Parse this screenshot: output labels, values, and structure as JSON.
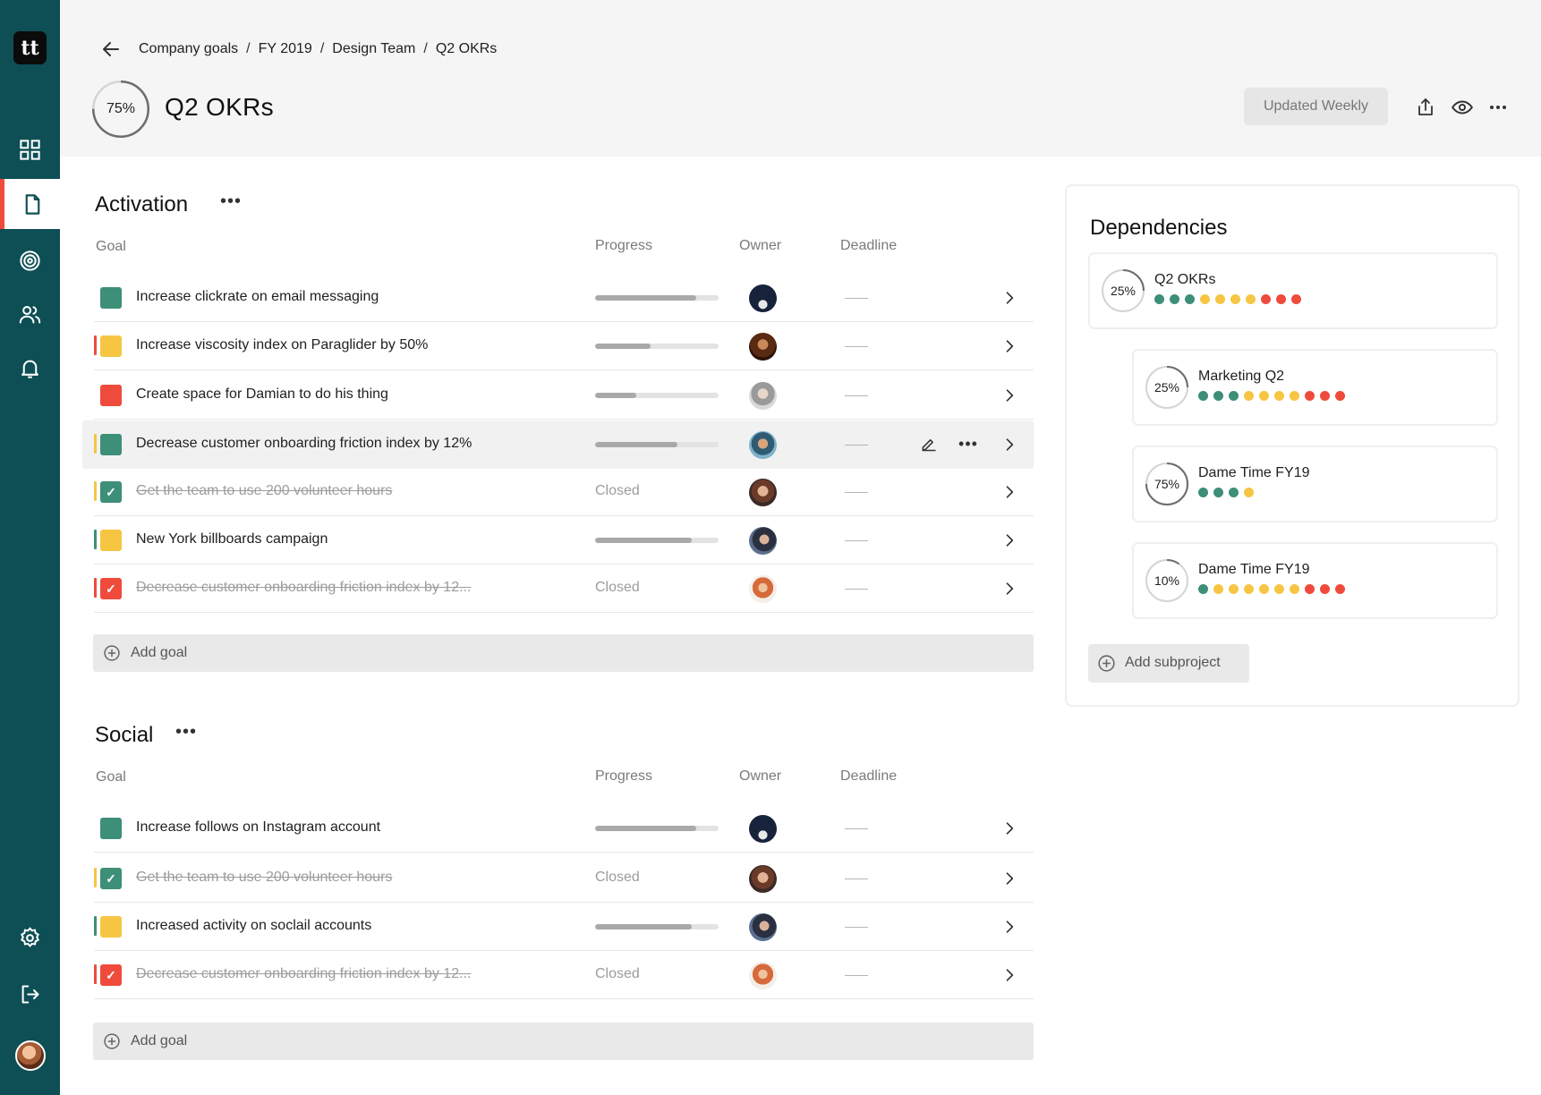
{
  "app": {
    "logo_text": "tt",
    "nav": [
      "dashboard-icon",
      "document-icon",
      "target-icon",
      "users-icon",
      "bell-icon"
    ],
    "bottom_nav": [
      "settings-icon",
      "logout-icon"
    ]
  },
  "header": {
    "breadcrumb": [
      "Company goals",
      "FY 2019",
      "Design Team",
      "Q2 OKRs"
    ],
    "progress": 0.75,
    "progress_label": "75%",
    "title": "Q2 OKRs",
    "updated_label": "Updated Weekly",
    "icons": [
      "share-icon",
      "eye-icon",
      "more-icon"
    ]
  },
  "columns": {
    "goal": "Goal",
    "progress": "Progress",
    "owner": "Owner",
    "deadline": "Deadline"
  },
  "sections": [
    {
      "title": "Activation",
      "add_label": "Add goal",
      "goals": [
        {
          "text": "Increase clickrate on email messaging",
          "status_color": "#3d8f77",
          "flag_color": "",
          "progress": 0.82,
          "closed": false
        },
        {
          "text": "Increase viscosity index on Paraglider by 50%",
          "status_color": "#f6c643",
          "flag_color": "#ef4b3c",
          "progress": 0.45,
          "closed": false
        },
        {
          "text": "Create space for Damian to do his thing",
          "status_color": "#ef4b3c",
          "flag_color": "",
          "progress": 0.33,
          "closed": false
        },
        {
          "text": "Decrease customer onboarding friction index by 12%",
          "status_color": "#3d8f77",
          "flag_color": "#f6c643",
          "progress": 0.67,
          "closed": false
        },
        {
          "text": "Get the team to use 200 volunteer hours",
          "status_color": "#3d8f77",
          "flag_color": "#f6c643",
          "closed": true,
          "closed_label": "Closed"
        },
        {
          "text": "New York billboards campaign",
          "status_color": "#f6c643",
          "flag_color": "#3d8f77",
          "progress": 0.78,
          "closed": false
        },
        {
          "text": "Decrease customer onboarding friction index by 12...",
          "status_color": "#ef4b3c",
          "flag_color": "#ef4b3c",
          "closed": true,
          "closed_label": "Closed"
        }
      ]
    },
    {
      "title": "Social",
      "add_label": "Add goal",
      "goals": [
        {
          "text": "Increase follows on Instagram account",
          "status_color": "#3d8f77",
          "flag_color": "",
          "progress": 0.82,
          "closed": false
        },
        {
          "text": "Get the team to use 200 volunteer hours",
          "status_color": "#3d8f77",
          "flag_color": "#f6c643",
          "closed": true,
          "closed_label": "Closed"
        },
        {
          "text": "Increased activity on soclail accounts",
          "status_color": "#f6c643",
          "flag_color": "#3d8f77",
          "progress": 0.78,
          "closed": false
        },
        {
          "text": "Decrease customer onboarding friction index by 12...",
          "status_color": "#ef4b3c",
          "flag_color": "#ef4b3c",
          "closed": true,
          "closed_label": "Closed"
        }
      ]
    }
  ],
  "dependencies": {
    "title": "Dependencies",
    "items": [
      {
        "name": "Q2 OKRs",
        "progress": 0.25,
        "label": "25%",
        "dots": [
          "g",
          "g",
          "g",
          "y",
          "y",
          "y",
          "y",
          "r",
          "r",
          "r"
        ]
      },
      {
        "name": "Marketing Q2",
        "progress": 0.25,
        "label": "25%",
        "dots": [
          "g",
          "g",
          "g",
          "y",
          "y",
          "y",
          "y",
          "r",
          "r",
          "r"
        ]
      },
      {
        "name": "Dame Time FY19",
        "progress": 0.75,
        "label": "75%",
        "dots": [
          "g",
          "g",
          "g",
          "y"
        ]
      },
      {
        "name": "Dame Time FY19",
        "progress": 0.1,
        "label": "10%",
        "dots": [
          "g",
          "y",
          "y",
          "y",
          "y",
          "y",
          "y",
          "r",
          "r",
          "r"
        ]
      }
    ],
    "add_label": "Add subproject"
  },
  "colors": {
    "sidebar": "#0e4f55",
    "green": "#3d8f77",
    "yellow": "#f6c643",
    "red": "#ef4b3c"
  }
}
